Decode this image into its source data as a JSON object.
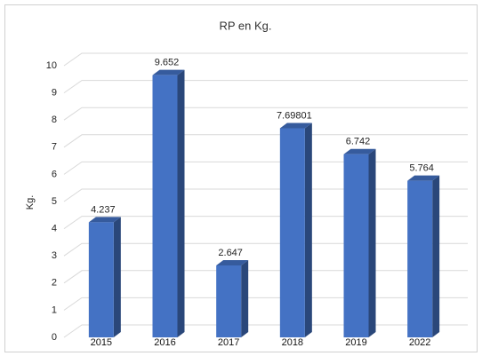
{
  "chart_data": {
    "type": "bar3d",
    "title": "RP en Kg.",
    "y_label": "Kg.",
    "categories": [
      "2015",
      "2016",
      "2017",
      "2018",
      "2019",
      "2022"
    ],
    "values": [
      4.237,
      9.652,
      2.647,
      7.69801,
      6.742,
      5.764
    ],
    "color": "#4472c4",
    "ylim": [
      0,
      10
    ],
    "yticks": [
      0,
      1,
      2,
      3,
      4,
      5,
      6,
      7,
      8,
      9,
      10
    ],
    "grid": true
  }
}
